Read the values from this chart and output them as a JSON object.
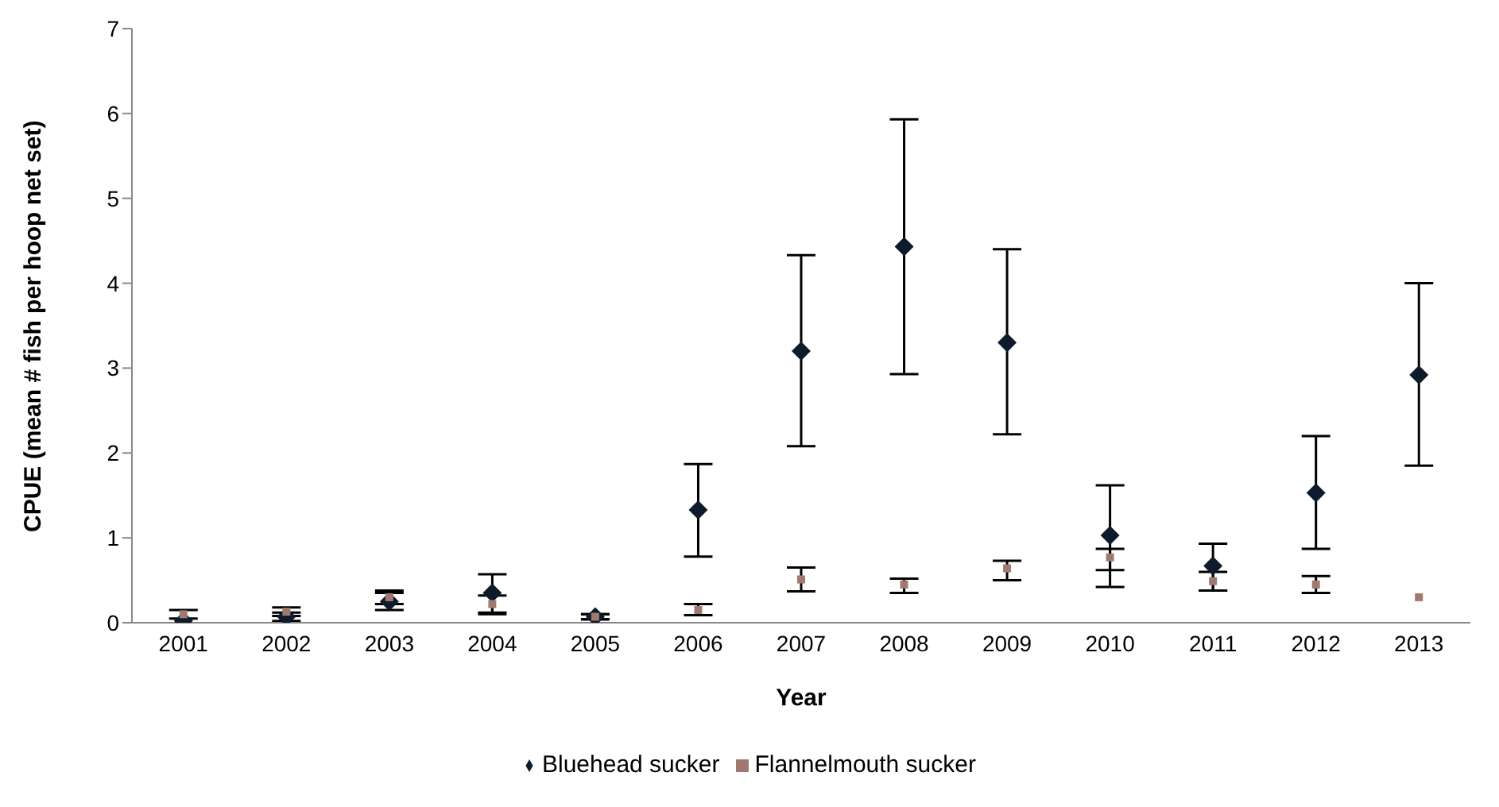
{
  "chart_data": {
    "type": "scatter",
    "xlabel": "Year",
    "ylabel": "CPUE (mean # fish per hoop net set)",
    "categories": [
      "2001",
      "2002",
      "2003",
      "2004",
      "2005",
      "2006",
      "2007",
      "2008",
      "2009",
      "2010",
      "2011",
      "2012",
      "2013"
    ],
    "series": [
      {
        "name": "Bluehead sucker",
        "color": "#0d1b2a",
        "marker": "diamond",
        "values": [
          0.02,
          0.07,
          0.25,
          0.35,
          0.07,
          1.33,
          3.2,
          4.43,
          3.3,
          1.03,
          0.67,
          1.53,
          2.92
        ],
        "errors": [
          null,
          [
            0.02,
            0.12
          ],
          [
            0.15,
            0.35
          ],
          [
            0.12,
            0.57
          ],
          [
            0.04,
            0.1
          ],
          [
            0.78,
            1.87
          ],
          [
            2.08,
            4.33
          ],
          [
            2.93,
            5.93
          ],
          [
            2.22,
            4.4
          ],
          [
            0.42,
            1.62
          ],
          [
            0.38,
            0.93
          ],
          [
            0.87,
            2.2
          ],
          [
            1.85,
            4.0
          ]
        ]
      },
      {
        "name": "Flannelmouth sucker",
        "color": "#a07a70",
        "marker": "square",
        "values": [
          0.1,
          0.13,
          0.3,
          0.22,
          0.07,
          0.15,
          0.51,
          0.45,
          0.64,
          0.77,
          0.49,
          0.45,
          0.3
        ],
        "errors": [
          [
            0.05,
            0.15
          ],
          [
            0.08,
            0.18
          ],
          [
            0.22,
            0.38
          ],
          [
            0.1,
            0.32
          ],
          [
            0.04,
            0.1
          ],
          [
            0.09,
            0.22
          ],
          [
            0.37,
            0.65
          ],
          [
            0.35,
            0.52
          ],
          [
            0.5,
            0.73
          ],
          [
            0.62,
            0.87
          ],
          [
            0.38,
            0.6
          ],
          [
            0.35,
            0.55
          ],
          null
        ]
      }
    ],
    "ylim": [
      0,
      7
    ],
    "yticks": [
      0,
      1,
      2,
      3,
      4,
      5,
      6,
      7
    ],
    "legend": "bottom"
  }
}
